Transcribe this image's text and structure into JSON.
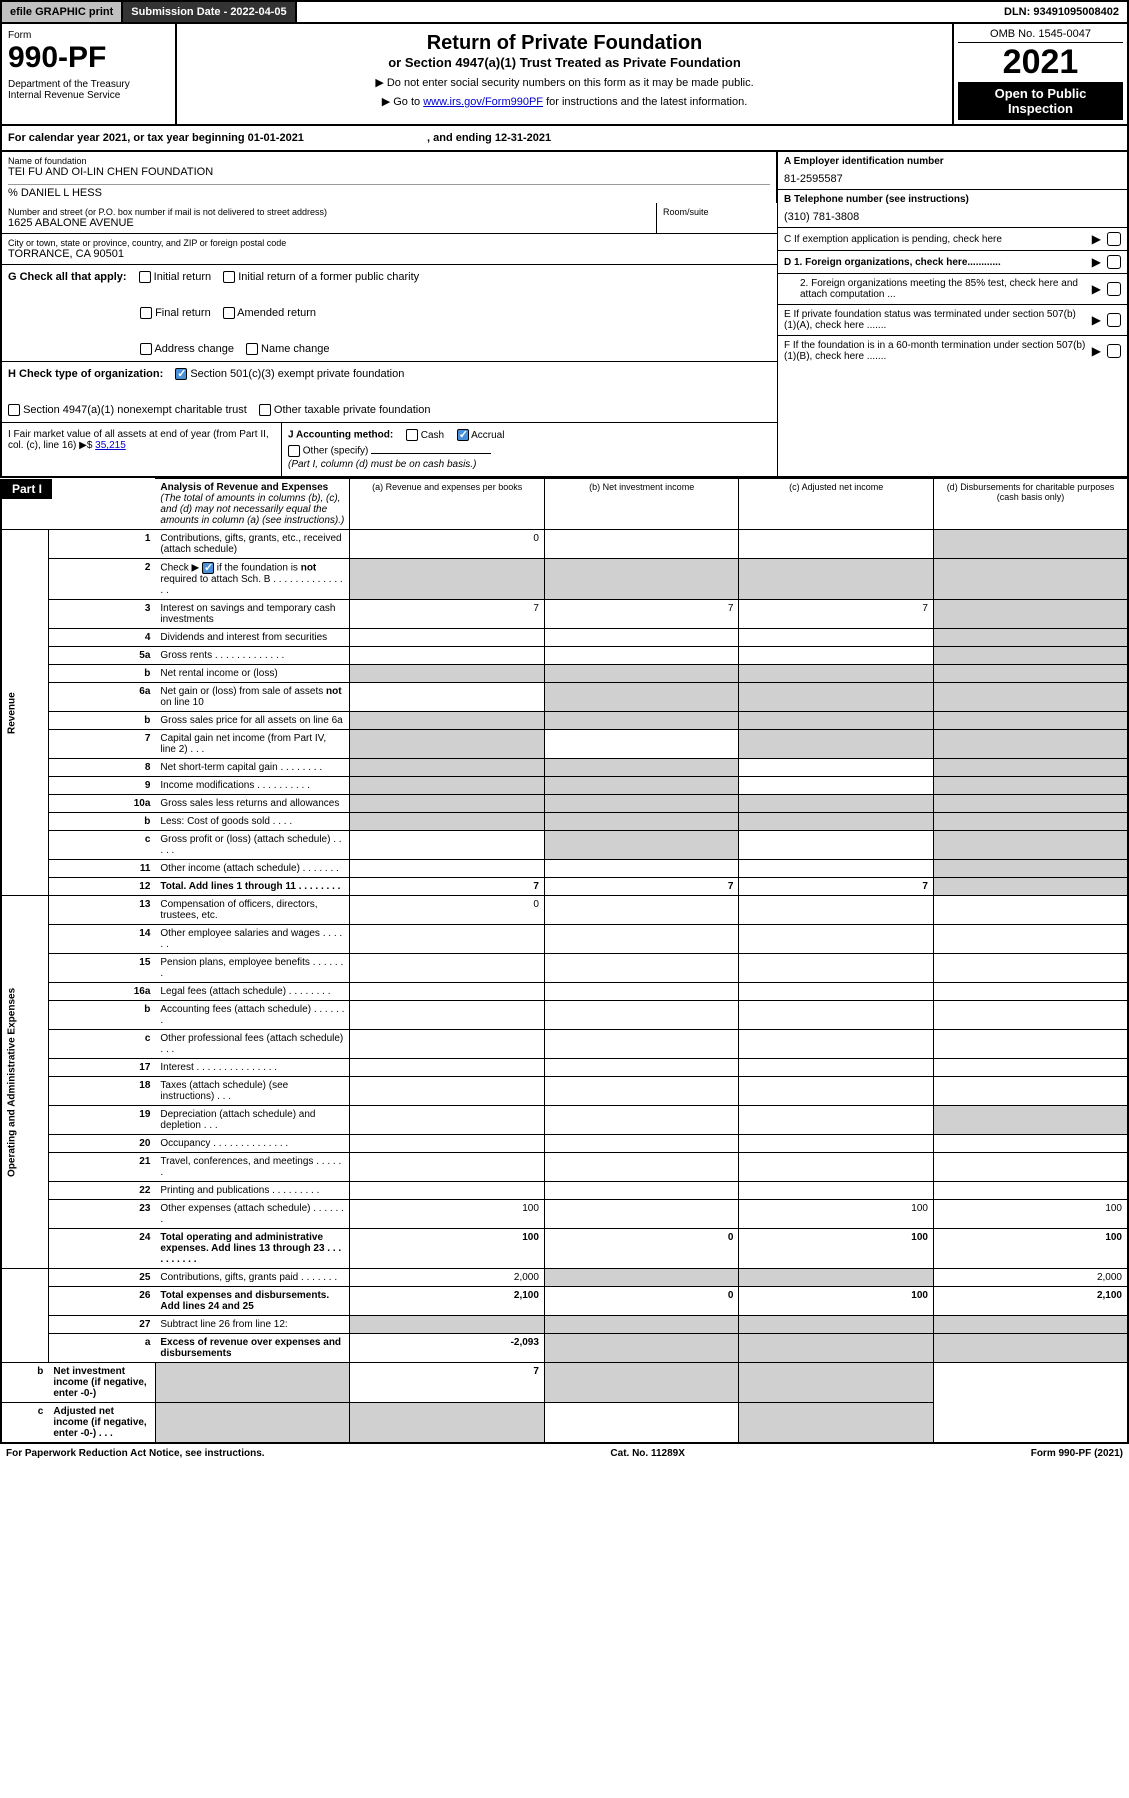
{
  "topbar": {
    "efile": "efile GRAPHIC print",
    "submission_label": "Submission Date - 2022-04-05",
    "dln": "DLN: 93491095008402"
  },
  "header": {
    "form": "Form",
    "form_number": "990-PF",
    "dept": "Department of the Treasury",
    "irs": "Internal Revenue Service",
    "title": "Return of Private Foundation",
    "subtitle": "or Section 4947(a)(1) Trust Treated as Private Foundation",
    "instr1": "▶ Do not enter social security numbers on this form as it may be made public.",
    "instr2_prefix": "▶ Go to ",
    "instr2_link": "www.irs.gov/Form990PF",
    "instr2_suffix": " for instructions and the latest information.",
    "omb": "OMB No. 1545-0047",
    "year": "2021",
    "open": "Open to Public Inspection"
  },
  "cal_year": {
    "prefix": "For calendar year 2021, or tax year beginning ",
    "begin": "01-01-2021",
    "mid": " , and ending ",
    "end": "12-31-2021"
  },
  "foundation": {
    "name_label": "Name of foundation",
    "name": "TEI FU AND OI-LIN CHEN FOUNDATION",
    "care_of": "% DANIEL L HESS",
    "street_label": "Number and street (or P.O. box number if mail is not delivered to street address)",
    "street": "1625 ABALONE AVENUE",
    "room_label": "Room/suite",
    "city_label": "City or town, state or province, country, and ZIP or foreign postal code",
    "city": "TORRANCE, CA  90501"
  },
  "right_info": {
    "a_label": "A Employer identification number",
    "a_value": "81-2595587",
    "b_label": "B Telephone number (see instructions)",
    "b_value": "(310) 781-3808",
    "c_label": "C If exemption application is pending, check here",
    "d1": "D 1. Foreign organizations, check here............",
    "d2": "2. Foreign organizations meeting the 85% test, check here and attach computation ...",
    "e": "E  If private foundation status was terminated under section 507(b)(1)(A), check here .......",
    "f": "F  If the foundation is in a 60-month termination under section 507(b)(1)(B), check here ......."
  },
  "g": {
    "label": "G Check all that apply:",
    "opts": [
      "Initial return",
      "Initial return of a former public charity",
      "Final return",
      "Amended return",
      "Address change",
      "Name change"
    ]
  },
  "h": {
    "label": "H Check type of organization:",
    "opt1": "Section 501(c)(3) exempt private foundation",
    "opt2": "Section 4947(a)(1) nonexempt charitable trust",
    "opt3": "Other taxable private foundation"
  },
  "i": {
    "label": "I Fair market value of all assets at end of year (from Part II, col. (c), line 16) ▶$ ",
    "value": "35,215"
  },
  "j": {
    "label": "J Accounting method:",
    "cash": "Cash",
    "accrual": "Accrual",
    "other": "Other (specify)",
    "note": "(Part I, column (d) must be on cash basis.)"
  },
  "part1": {
    "header": "Part I",
    "title": "Analysis of Revenue and Expenses",
    "title_note": " (The total of amounts in columns (b), (c), and (d) may not necessarily equal the amounts in column (a) (see instructions).)",
    "col_a": "(a)  Revenue and expenses per books",
    "col_b": "(b)  Net investment income",
    "col_c": "(c)  Adjusted net income",
    "col_d": "(d)  Disbursements for charitable purposes (cash basis only)"
  },
  "section_labels": {
    "revenue": "Revenue",
    "opex": "Operating and Administrative Expenses"
  },
  "lines": [
    {
      "n": "1",
      "label": "Contributions, gifts, grants, etc., received (attach schedule)",
      "a": "0",
      "b": "",
      "c": "",
      "d": "",
      "shade": [
        "d"
      ]
    },
    {
      "n": "2",
      "label": "Check ▶ ☑ if the foundation is not required to attach Sch. B     .   .   .   .   .   .   .   .   .   .   .   .   .   .   .",
      "a": "",
      "b": "",
      "c": "",
      "d": "",
      "shade": [
        "a",
        "b",
        "c",
        "d"
      ],
      "allshade": true
    },
    {
      "n": "3",
      "label": "Interest on savings and temporary cash investments",
      "a": "7",
      "b": "7",
      "c": "7",
      "d": "",
      "shade": [
        "d"
      ]
    },
    {
      "n": "4",
      "label": "Dividends and interest from securities",
      "a": "",
      "b": "",
      "c": "",
      "d": "",
      "shade": [
        "d"
      ]
    },
    {
      "n": "5a",
      "label": "Gross rents   .   .   .   .   .   .   .   .   .   .   .   .   .",
      "a": "",
      "b": "",
      "c": "",
      "d": "",
      "shade": [
        "d"
      ]
    },
    {
      "n": "b",
      "label": "Net rental income or (loss)",
      "a": "",
      "b": "",
      "c": "",
      "d": "",
      "shade": [
        "a",
        "b",
        "c",
        "d"
      ],
      "allshade": true
    },
    {
      "n": "6a",
      "label": "Net gain or (loss) from sale of assets not on line 10",
      "a": "",
      "b": "",
      "c": "",
      "d": "",
      "shade": [
        "b",
        "c",
        "d"
      ]
    },
    {
      "n": "b",
      "label": "Gross sales price for all assets on line 6a",
      "a": "",
      "b": "",
      "c": "",
      "d": "",
      "shade": [
        "a",
        "b",
        "c",
        "d"
      ],
      "allshade": true
    },
    {
      "n": "7",
      "label": "Capital gain net income (from Part IV, line 2)   .   .   .",
      "a": "",
      "b": "",
      "c": "",
      "d": "",
      "shade": [
        "a",
        "c",
        "d"
      ]
    },
    {
      "n": "8",
      "label": "Net short-term capital gain   .   .   .   .   .   .   .   .",
      "a": "",
      "b": "",
      "c": "",
      "d": "",
      "shade": [
        "a",
        "b",
        "d"
      ]
    },
    {
      "n": "9",
      "label": "Income modifications   .   .   .   .   .   .   .   .   .   .",
      "a": "",
      "b": "",
      "c": "",
      "d": "",
      "shade": [
        "a",
        "b",
        "d"
      ]
    },
    {
      "n": "10a",
      "label": "Gross sales less returns and allowances",
      "a": "",
      "b": "",
      "c": "",
      "d": "",
      "shade": [
        "a",
        "b",
        "c",
        "d"
      ],
      "allshade": true
    },
    {
      "n": "b",
      "label": "Less: Cost of goods sold   .   .   .   .",
      "a": "",
      "b": "",
      "c": "",
      "d": "",
      "shade": [
        "a",
        "b",
        "c",
        "d"
      ],
      "allshade": true
    },
    {
      "n": "c",
      "label": "Gross profit or (loss) (attach schedule)   .   .   .   .   .",
      "a": "",
      "b": "",
      "c": "",
      "d": "",
      "shade": [
        "b",
        "d"
      ]
    },
    {
      "n": "11",
      "label": "Other income (attach schedule)   .   .   .   .   .   .   .",
      "a": "",
      "b": "",
      "c": "",
      "d": "",
      "shade": [
        "d"
      ]
    },
    {
      "n": "12",
      "label": "Total. Add lines 1 through 11   .   .   .   .   .   .   .   .",
      "a": "7",
      "b": "7",
      "c": "7",
      "d": "",
      "shade": [
        "d"
      ],
      "bold": true
    },
    {
      "n": "13",
      "label": "Compensation of officers, directors, trustees, etc.",
      "a": "0",
      "b": "",
      "c": "",
      "d": ""
    },
    {
      "n": "14",
      "label": "Other employee salaries and wages   .   .   .   .   .   .",
      "a": "",
      "b": "",
      "c": "",
      "d": ""
    },
    {
      "n": "15",
      "label": "Pension plans, employee benefits   .   .   .   .   .   .   .",
      "a": "",
      "b": "",
      "c": "",
      "d": ""
    },
    {
      "n": "16a",
      "label": "Legal fees (attach schedule)   .   .   .   .   .   .   .   .",
      "a": "",
      "b": "",
      "c": "",
      "d": ""
    },
    {
      "n": "b",
      "label": "Accounting fees (attach schedule)   .   .   .   .   .   .   .",
      "a": "",
      "b": "",
      "c": "",
      "d": ""
    },
    {
      "n": "c",
      "label": "Other professional fees (attach schedule)   .   .   .",
      "a": "",
      "b": "",
      "c": "",
      "d": ""
    },
    {
      "n": "17",
      "label": "Interest   .   .   .   .   .   .   .   .   .   .   .   .   .   .   .",
      "a": "",
      "b": "",
      "c": "",
      "d": ""
    },
    {
      "n": "18",
      "label": "Taxes (attach schedule) (see instructions)   .   .   .",
      "a": "",
      "b": "",
      "c": "",
      "d": ""
    },
    {
      "n": "19",
      "label": "Depreciation (attach schedule) and depletion   .   .   .",
      "a": "",
      "b": "",
      "c": "",
      "d": "",
      "shade": [
        "d"
      ]
    },
    {
      "n": "20",
      "label": "Occupancy   .   .   .   .   .   .   .   .   .   .   .   .   .   .",
      "a": "",
      "b": "",
      "c": "",
      "d": ""
    },
    {
      "n": "21",
      "label": "Travel, conferences, and meetings   .   .   .   .   .   .",
      "a": "",
      "b": "",
      "c": "",
      "d": ""
    },
    {
      "n": "22",
      "label": "Printing and publications   .   .   .   .   .   .   .   .   .",
      "a": "",
      "b": "",
      "c": "",
      "d": ""
    },
    {
      "n": "23",
      "label": "Other expenses (attach schedule)   .   .   .   .   .   .   .",
      "a": "100",
      "b": "",
      "c": "100",
      "d": "100"
    },
    {
      "n": "24",
      "label": "Total operating and administrative expenses. Add lines 13 through 23   .   .   .   .   .   .   .   .   .   .",
      "a": "100",
      "b": "0",
      "c": "100",
      "d": "100",
      "bold": true
    },
    {
      "n": "25",
      "label": "Contributions, gifts, grants paid   .   .   .   .   .   .   .",
      "a": "2,000",
      "b": "",
      "c": "",
      "d": "2,000",
      "shade": [
        "b",
        "c"
      ]
    },
    {
      "n": "26",
      "label": "Total expenses and disbursements. Add lines 24 and 25",
      "a": "2,100",
      "b": "0",
      "c": "100",
      "d": "2,100",
      "bold": true
    },
    {
      "n": "27",
      "label": "Subtract line 26 from line 12:",
      "a": "",
      "b": "",
      "c": "",
      "d": "",
      "shade": [
        "a",
        "b",
        "c",
        "d"
      ],
      "allshade": true
    },
    {
      "n": "a",
      "label": "Excess of revenue over expenses and disbursements",
      "a": "-2,093",
      "b": "",
      "c": "",
      "d": "",
      "shade": [
        "b",
        "c",
        "d"
      ],
      "bold": true
    },
    {
      "n": "b",
      "label": "Net investment income (if negative, enter -0-)",
      "a": "",
      "b": "7",
      "c": "",
      "d": "",
      "shade": [
        "a",
        "c",
        "d"
      ],
      "bold": true
    },
    {
      "n": "c",
      "label": "Adjusted net income (if negative, enter -0-)   .   .   .",
      "a": "",
      "b": "",
      "c": "",
      "d": "",
      "shade": [
        "a",
        "b",
        "d"
      ],
      "bold": true
    }
  ],
  "footer": {
    "left": "For Paperwork Reduction Act Notice, see instructions.",
    "mid": "Cat. No. 11289X",
    "right": "Form 990-PF (2021)"
  }
}
